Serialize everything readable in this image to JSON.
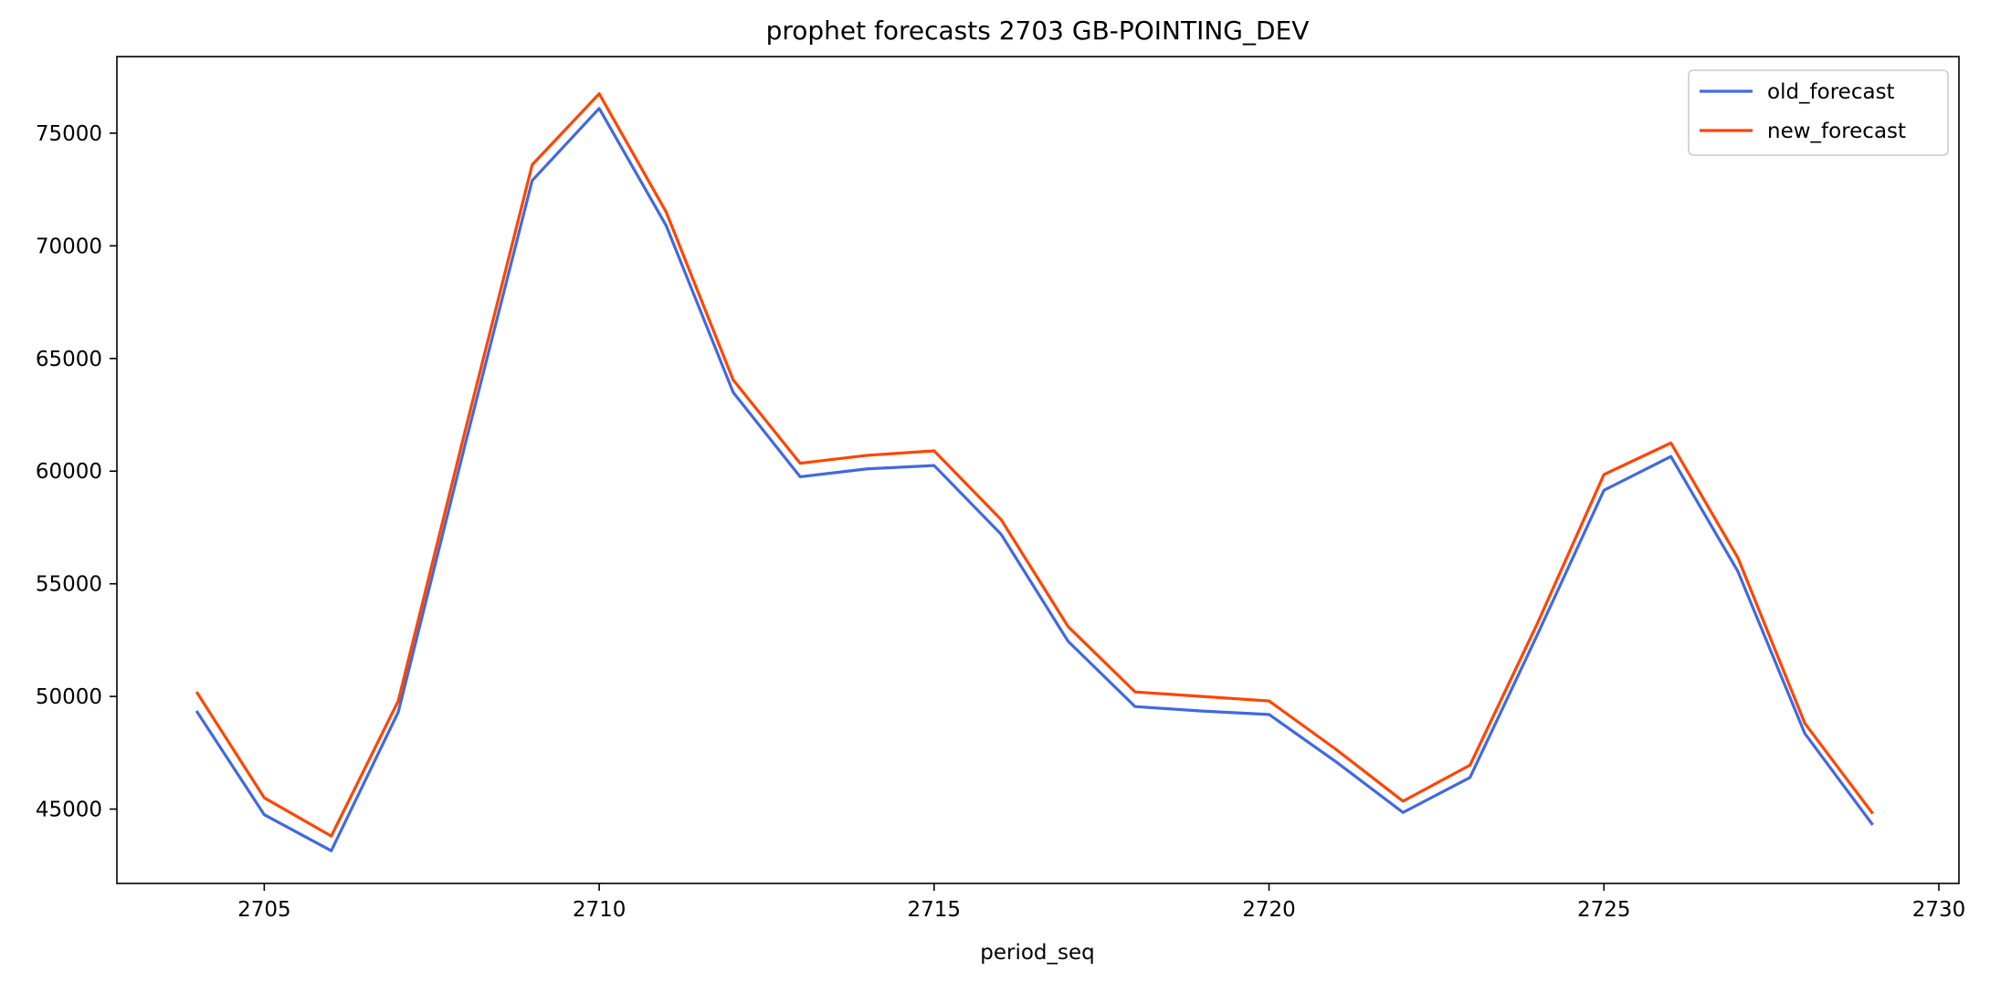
{
  "chart_data": {
    "type": "line",
    "title": "prophet forecasts 2703 GB-POINTING_DEV",
    "xlabel": "period_seq",
    "ylabel": "",
    "xlim": [
      2702.8,
      2730.3
    ],
    "ylim": [
      41700,
      78400
    ],
    "xticks": [
      2705,
      2710,
      2715,
      2720,
      2725,
      2730
    ],
    "yticks": [
      45000,
      50000,
      55000,
      60000,
      65000,
      70000,
      75000
    ],
    "grid": false,
    "legend_position": "top-right",
    "x": [
      2704,
      2705,
      2706,
      2707,
      2708,
      2709,
      2710,
      2711,
      2712,
      2713,
      2714,
      2715,
      2716,
      2717,
      2718,
      2719,
      2720,
      2721,
      2722,
      2723,
      2724,
      2725,
      2726,
      2727,
      2728,
      2729
    ],
    "series": [
      {
        "name": "old_forecast",
        "color": "#4169e1",
        "values": [
          49300,
          44750,
          43150,
          49300,
          61200,
          72900,
          76100,
          70900,
          63500,
          59750,
          60100,
          60250,
          57200,
          52450,
          49550,
          49350,
          49200,
          47100,
          44850,
          46400,
          52700,
          59150,
          60650,
          55550,
          48350,
          44350
        ]
      },
      {
        "name": "new_forecast",
        "color": "#ff4500",
        "values": [
          50150,
          45500,
          43800,
          49800,
          61800,
          73600,
          76750,
          71500,
          64050,
          60350,
          60700,
          60900,
          57850,
          53100,
          50200,
          50000,
          49800,
          47650,
          45350,
          46950,
          53200,
          59850,
          61250,
          56150,
          48800,
          44850
        ]
      }
    ]
  }
}
